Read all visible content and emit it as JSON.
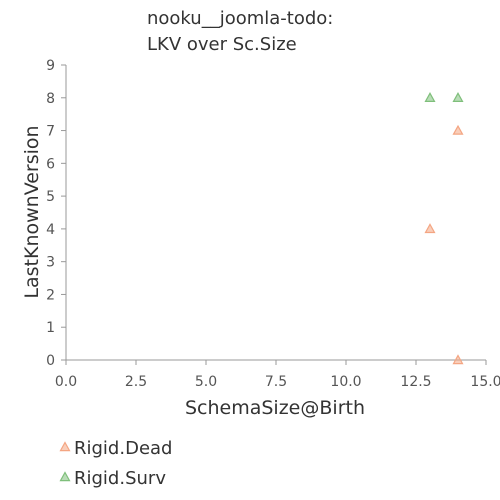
{
  "chart_data": {
    "type": "scatter",
    "title_lines": [
      "nooku__joomla-todo:",
      "LKV over Sc.Size"
    ],
    "xlabel": "SchemaSize@Birth",
    "ylabel": "LastKnownVersion",
    "xlim": [
      0,
      15
    ],
    "ylim": [
      0,
      9
    ],
    "x_ticks": [
      "0.0",
      "2.5",
      "5.0",
      "7.5",
      "10.0",
      "12.5",
      "15.0"
    ],
    "y_ticks": [
      "0",
      "1",
      "2",
      "3",
      "4",
      "5",
      "6",
      "7",
      "8",
      "9"
    ],
    "grid": false,
    "legend_position": "bottom-left",
    "series": [
      {
        "name": "Rigid.Dead",
        "marker": "triangle",
        "color": "#f4a582",
        "points": [
          {
            "x": 13,
            "y": 4
          },
          {
            "x": 14,
            "y": 7
          },
          {
            "x": 14,
            "y": 0
          }
        ]
      },
      {
        "name": "Rigid.Surv",
        "marker": "triangle",
        "color": "#7fbf7b",
        "points": [
          {
            "x": 13,
            "y": 8
          },
          {
            "x": 14,
            "y": 8
          }
        ]
      }
    ]
  }
}
